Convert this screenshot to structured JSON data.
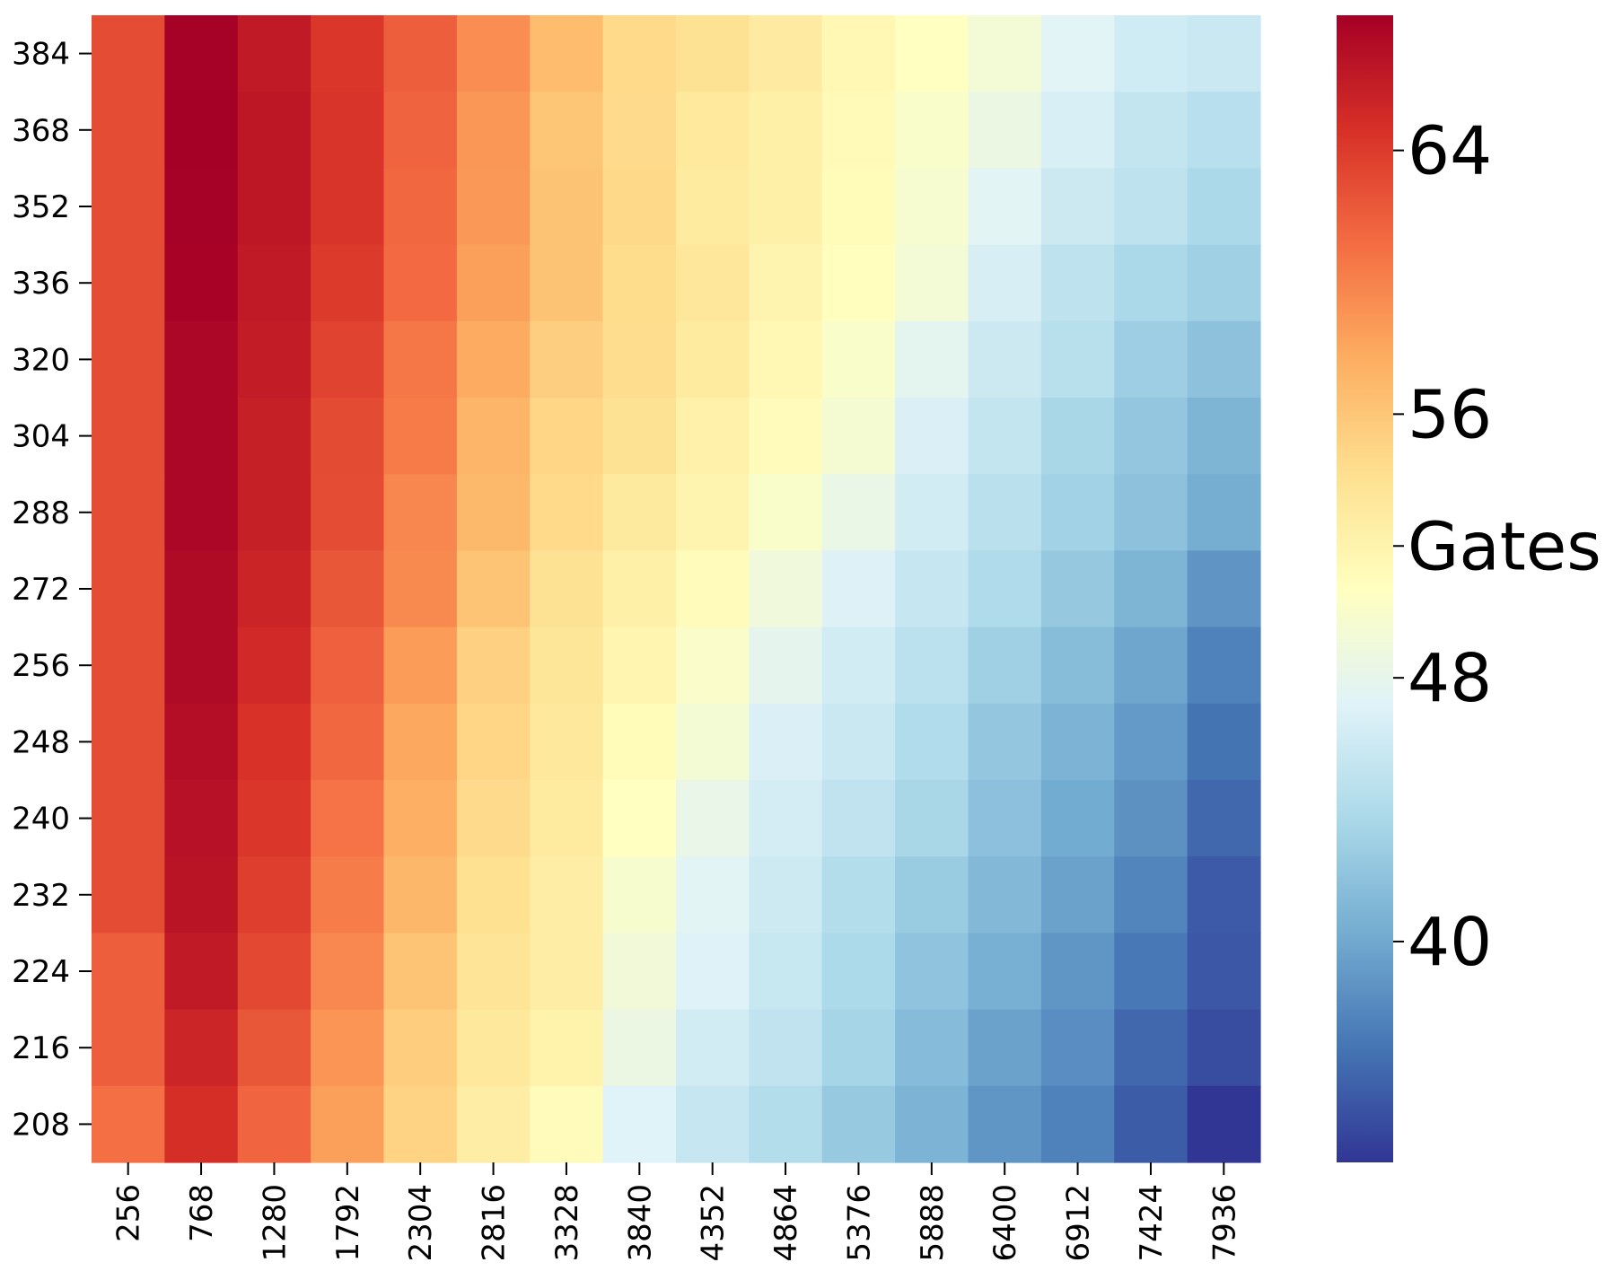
{
  "chart_data": {
    "type": "heatmap",
    "title": "",
    "xlabel": "",
    "ylabel": "",
    "x_categories": [
      "256",
      "768",
      "1280",
      "1792",
      "2304",
      "2816",
      "3328",
      "3840",
      "4352",
      "4864",
      "5376",
      "5888",
      "6400",
      "6912",
      "7424",
      "7936"
    ],
    "y_categories": [
      "384",
      "368",
      "352",
      "336",
      "320",
      "304",
      "288",
      "272",
      "256",
      "248",
      "240",
      "232",
      "224",
      "216",
      "208"
    ],
    "values": [
      [
        63.0,
        68.0,
        66.2,
        64.2,
        62.0,
        59.4,
        56.7,
        54.6,
        53.9,
        52.9,
        51.6,
        50.6,
        49.3,
        47.4,
        46.1,
        45.7
      ],
      [
        63.0,
        68.1,
        66.4,
        64.4,
        61.7,
        58.9,
        56.0,
        54.5,
        53.2,
        52.4,
        51.3,
        50.0,
        48.5,
        46.7,
        45.3,
        44.6
      ],
      [
        63.0,
        68.0,
        66.4,
        64.4,
        61.5,
        58.8,
        56.2,
        54.7,
        53.0,
        52.4,
        51.2,
        49.7,
        47.5,
        45.9,
        45.0,
        43.8
      ],
      [
        63.0,
        67.9,
        66.2,
        64.0,
        61.3,
        58.4,
        56.2,
        54.4,
        53.4,
        51.9,
        50.8,
        49.3,
        46.6,
        45.0,
        43.8,
        43.0
      ],
      [
        63.0,
        67.6,
        66.1,
        63.5,
        60.6,
        57.8,
        55.4,
        54.3,
        53.0,
        51.6,
        50.0,
        47.7,
        45.9,
        44.5,
        42.9,
        41.9
      ],
      [
        63.0,
        67.6,
        65.8,
        63.1,
        60.4,
        57.1,
        54.9,
        53.9,
        52.3,
        51.0,
        49.5,
        46.8,
        45.3,
        43.6,
        42.3,
        40.9
      ],
      [
        63.0,
        67.6,
        65.8,
        63.0,
        59.8,
        56.9,
        54.6,
        53.1,
        51.9,
        50.0,
        48.3,
        46.3,
        44.7,
        43.2,
        41.9,
        40.3
      ],
      [
        63.0,
        67.4,
        65.5,
        62.4,
        59.6,
        56.1,
        53.9,
        52.4,
        51.1,
        49.0,
        47.0,
        45.5,
        44.0,
        42.4,
        40.9,
        38.7
      ],
      [
        63.0,
        67.3,
        65.1,
        61.8,
        58.6,
        55.2,
        53.5,
        51.8,
        50.1,
        47.8,
        46.3,
        44.8,
        43.0,
        41.5,
        39.8,
        37.5
      ],
      [
        63.0,
        67.1,
        64.5,
        61.5,
        58.0,
        54.9,
        53.3,
        51.2,
        49.4,
        46.8,
        45.7,
        44.1,
        42.3,
        40.8,
        39.1,
        36.7
      ],
      [
        63.0,
        66.9,
        64.2,
        60.8,
        57.5,
        54.5,
        53.0,
        50.6,
        48.2,
        46.4,
        45.1,
        43.6,
        41.8,
        40.2,
        38.5,
        36.0
      ],
      [
        63.0,
        66.7,
        63.8,
        60.3,
        57.0,
        54.1,
        52.7,
        49.8,
        47.5,
        46.0,
        44.3,
        42.6,
        41.2,
        39.6,
        37.8,
        35.3
      ],
      [
        62.0,
        66.2,
        63.2,
        59.7,
        56.1,
        53.7,
        52.7,
        49.1,
        47.1,
        45.6,
        43.9,
        42.0,
        40.5,
        38.8,
        37.0,
        35.1
      ],
      [
        62.0,
        65.4,
        62.4,
        59.0,
        55.5,
        53.3,
        52.2,
        48.5,
        46.3,
        45.1,
        43.4,
        41.4,
        39.6,
        38.3,
        36.0,
        34.5
      ],
      [
        61.0,
        64.8,
        61.6,
        58.4,
        55.1,
        52.6,
        51.0,
        47.2,
        45.5,
        44.3,
        42.5,
        40.8,
        38.8,
        37.5,
        35.4,
        33.3
      ]
    ],
    "vmin": 33.3,
    "vmax": 68.1,
    "colormap": [
      "#313695",
      "#4575b4",
      "#74add1",
      "#abd9e9",
      "#e0f3f8",
      "#ffffbf",
      "#fee090",
      "#fdae61",
      "#f46d43",
      "#d73027",
      "#a50026"
    ],
    "colorbar": {
      "ticks": [
        64,
        56,
        "Gates",
        48,
        40
      ],
      "tick_values": [
        64,
        56,
        52,
        48,
        40
      ]
    }
  }
}
